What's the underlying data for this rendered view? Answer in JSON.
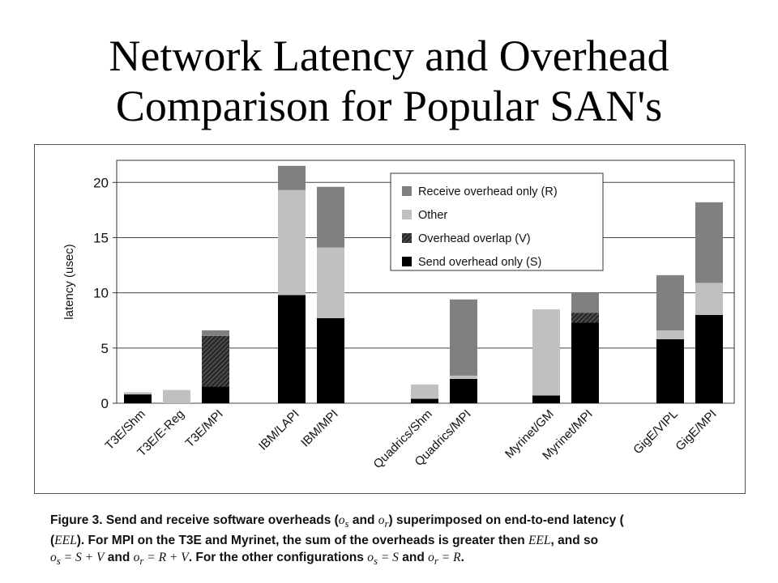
{
  "slide": {
    "title_line1": "Network Latency and Overhead",
    "title_line2": "Comparison for Popular SAN's"
  },
  "chart_data": {
    "type": "bar",
    "stacked": true,
    "categories": [
      "T3E/Shm",
      "T3E/E-Reg",
      "T3E/MPI",
      "IBM/LAPI",
      "IBM/MPI",
      "Quadrics/Shm",
      "Quadrics/MPI",
      "Myrinet/GM",
      "Myrinet/MPI",
      "GigE/VIPL",
      "GigE/MPI"
    ],
    "groups": [
      [
        0,
        1,
        2
      ],
      [
        3,
        4
      ],
      [
        5,
        6
      ],
      [
        7,
        8
      ],
      [
        9,
        10
      ]
    ],
    "ylabel": "latency (usec)",
    "xlabel": "",
    "ylim": [
      0,
      22
    ],
    "yticks": [
      0,
      5,
      10,
      15,
      20
    ],
    "grid": true,
    "legend": {
      "placement": "top-right",
      "entries": [
        "Receive overhead only (R)",
        "Other",
        "Overhead overlap (V)",
        "Send overhead only (S)"
      ]
    },
    "series": [
      {
        "name": "Send overhead only (S)",
        "color": "#000000",
        "values": [
          0.8,
          0,
          1.5,
          9.8,
          7.7,
          0.4,
          2.2,
          0.7,
          7.3,
          5.8,
          8.0
        ]
      },
      {
        "name": "Overhead overlap (V)",
        "color": "#3c3c3c",
        "pattern": "hatch",
        "values": [
          0,
          0,
          4.6,
          0,
          0,
          0,
          0,
          0,
          0.9,
          0,
          0
        ]
      },
      {
        "name": "Other",
        "color": "#c0c0c0",
        "values": [
          0.2,
          1.2,
          0,
          9.5,
          6.4,
          1.3,
          0.3,
          7.8,
          0,
          0.8,
          2.9
        ]
      },
      {
        "name": "Receive overhead only (R)",
        "color": "#808080",
        "values": [
          0,
          0,
          0.5,
          2.2,
          5.5,
          0,
          6.9,
          0,
          1.8,
          5.0,
          7.3
        ]
      }
    ]
  },
  "caption": {
    "fig_label": "Figure 3.",
    "t1": "Send and receive software overheads (",
    "os": "o",
    "os_sub": "s",
    "and": " and ",
    "or": "o",
    "or_sub": "r",
    "t2": ") superimposed on end-to-end latency (",
    "eel": "EEL",
    "t3": ").  For MPI on the T3E and Myrinet, the sum of the overheads is greater then ",
    "eel2": "EEL",
    "t4": ", and so",
    "eq1": " = S + V",
    "t5": " and ",
    "eq2": " = R + V",
    "t6": ".  For the other configurations ",
    "eq3": " = S",
    "t7": " and ",
    "eq4": " = R",
    "t8": "."
  }
}
